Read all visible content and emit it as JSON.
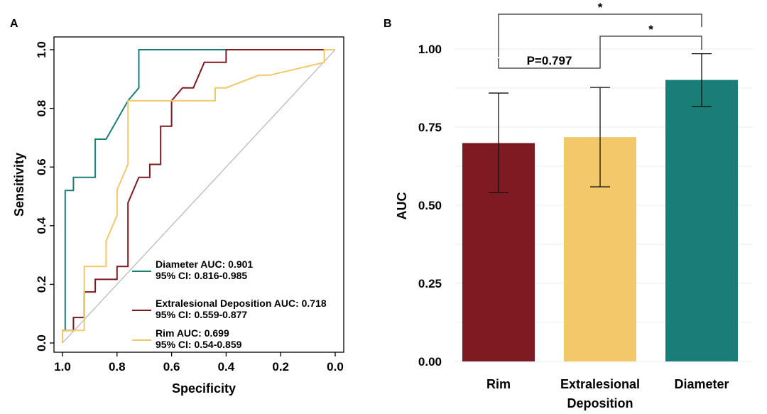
{
  "colors": {
    "diameter": "#1a7e78",
    "extralesional": "#7e1a22",
    "rim": "#f2c86a",
    "diagonal": "#b5b5b5",
    "axis": "#000000"
  },
  "panels": {
    "a_label": "A",
    "b_label": "B"
  },
  "chart_data": [
    {
      "type": "line",
      "panel": "A",
      "xlabel": "Specificity",
      "ylabel": "Sensitivity",
      "xlim": [
        1.0,
        0.0
      ],
      "ylim": [
        0.0,
        1.0
      ],
      "x_reversed": true,
      "xticks": [
        "1.0",
        "0.8",
        "0.6",
        "0.4",
        "0.2",
        "0.0"
      ],
      "xtick_values": [
        1.0,
        0.8,
        0.6,
        0.4,
        0.2,
        0.0
      ],
      "yticks": [
        "0.0",
        "0.2",
        "0.4",
        "0.6",
        "0.8",
        "1.0"
      ],
      "ytick_values": [
        0.0,
        0.2,
        0.4,
        0.6,
        0.8,
        1.0
      ],
      "legend_position": "bottom-right",
      "series": [
        {
          "key": "diameter",
          "name": "Diameter AUC: 0.901",
          "ci": "95% CI: 0.816-0.985",
          "points": [
            [
              1.0,
              0.0
            ],
            [
              1.0,
              0.043
            ],
            [
              0.99,
              0.043
            ],
            [
              0.99,
              0.52
            ],
            [
              0.96,
              0.52
            ],
            [
              0.96,
              0.565
            ],
            [
              0.88,
              0.565
            ],
            [
              0.88,
              0.695
            ],
            [
              0.84,
              0.695
            ],
            [
              0.76,
              0.826
            ],
            [
              0.72,
              0.87
            ],
            [
              0.72,
              1.0
            ],
            [
              0.0,
              1.0
            ]
          ]
        },
        {
          "key": "extralesional",
          "name": "Extralesional Deposition AUC: 0.718",
          "ci": "95% CI: 0.559-0.877",
          "points": [
            [
              1.0,
              0.0
            ],
            [
              1.0,
              0.043
            ],
            [
              0.96,
              0.043
            ],
            [
              0.96,
              0.087
            ],
            [
              0.92,
              0.087
            ],
            [
              0.92,
              0.174
            ],
            [
              0.88,
              0.174
            ],
            [
              0.88,
              0.217
            ],
            [
              0.8,
              0.217
            ],
            [
              0.8,
              0.261
            ],
            [
              0.76,
              0.261
            ],
            [
              0.76,
              0.478
            ],
            [
              0.72,
              0.565
            ],
            [
              0.68,
              0.565
            ],
            [
              0.68,
              0.609
            ],
            [
              0.64,
              0.609
            ],
            [
              0.64,
              0.739
            ],
            [
              0.6,
              0.739
            ],
            [
              0.6,
              0.826
            ],
            [
              0.56,
              0.87
            ],
            [
              0.52,
              0.87
            ],
            [
              0.48,
              0.957
            ],
            [
              0.4,
              0.957
            ],
            [
              0.4,
              1.0
            ],
            [
              0.0,
              1.0
            ]
          ]
        },
        {
          "key": "rim",
          "name": "Rim AUC: 0.699",
          "ci": "95% CI: 0.54-0.859",
          "points": [
            [
              1.0,
              0.0
            ],
            [
              1.0,
              0.043
            ],
            [
              0.92,
              0.043
            ],
            [
              0.92,
              0.261
            ],
            [
              0.84,
              0.261
            ],
            [
              0.84,
              0.348
            ],
            [
              0.8,
              0.435
            ],
            [
              0.8,
              0.522
            ],
            [
              0.76,
              0.609
            ],
            [
              0.76,
              0.826
            ],
            [
              0.56,
              0.826
            ],
            [
              0.56,
              0.826
            ],
            [
              0.44,
              0.826
            ],
            [
              0.44,
              0.87
            ],
            [
              0.4,
              0.87
            ],
            [
              0.28,
              0.913
            ],
            [
              0.24,
              0.913
            ],
            [
              0.04,
              0.957
            ],
            [
              0.04,
              1.0
            ],
            [
              0.0,
              1.0
            ]
          ]
        }
      ]
    },
    {
      "type": "bar",
      "panel": "B",
      "xlabel": "",
      "ylabel": "AUC",
      "ylim": [
        0.0,
        1.0
      ],
      "yticks": [
        "0.00",
        "0.25",
        "0.50",
        "0.75",
        "1.00"
      ],
      "ytick_values": [
        0.0,
        0.25,
        0.5,
        0.75,
        1.0
      ],
      "categories": [
        "Rim",
        "Extralesional Deposition",
        "Diameter"
      ],
      "category_lines": [
        [
          "Rim"
        ],
        [
          "Extralesional",
          "Deposition"
        ],
        [
          "Diameter"
        ]
      ],
      "values": [
        0.699,
        0.718,
        0.901
      ],
      "ci_low": [
        0.54,
        0.559,
        0.816
      ],
      "ci_high": [
        0.859,
        0.877,
        0.985
      ],
      "bar_colors": [
        "#7e1a22",
        "#f2c86a",
        "#1a7e78"
      ],
      "comparisons": [
        {
          "from": 0,
          "to": 1,
          "label": "P=0.797",
          "level": 0
        },
        {
          "from": 1,
          "to": 2,
          "label": "*",
          "level": 1
        },
        {
          "from": 0,
          "to": 2,
          "label": "*",
          "level": 2
        }
      ]
    }
  ]
}
